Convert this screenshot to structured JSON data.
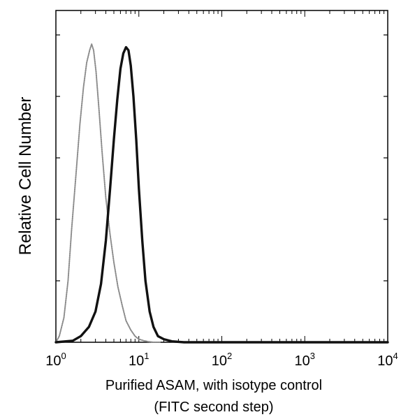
{
  "chart_data": {
    "type": "line",
    "title": "",
    "xlabel": [
      "Purified ASAM, with isotype control",
      "(FITC second step)"
    ],
    "ylabel": "Relative Cell Number",
    "x_scale": "log",
    "xlim": [
      1,
      10000
    ],
    "ylim": [
      0,
      100
    ],
    "x_ticks": [
      {
        "value": 1,
        "base": "10",
        "exp": "0"
      },
      {
        "value": 10,
        "base": "10",
        "exp": "1"
      },
      {
        "value": 100,
        "base": "10",
        "exp": "2"
      },
      {
        "value": 1000,
        "base": "10",
        "exp": "3"
      },
      {
        "value": 10000,
        "base": "10",
        "exp": "4"
      }
    ],
    "y_ticks": [
      0,
      20,
      40,
      60,
      80,
      100
    ],
    "grid": false,
    "legend": "none",
    "series": [
      {
        "style": "dotted-gray",
        "color": "#8a8a8a",
        "x": [
          1.0,
          1.1,
          1.25,
          1.4,
          1.55,
          1.75,
          1.95,
          2.15,
          2.35,
          2.55,
          2.7,
          2.85,
          3.05,
          3.3,
          3.6,
          4.0,
          4.5,
          5.0,
          5.6,
          6.3,
          7.0,
          8.0,
          9.0,
          10.0,
          11.5,
          13.0,
          15.0,
          18.0
        ],
        "y": [
          0,
          2,
          8,
          20,
          37,
          55,
          71,
          83,
          91,
          95,
          97,
          95,
          88,
          76,
          62,
          47,
          35,
          26,
          18,
          12,
          7,
          4,
          2,
          1,
          0.5,
          0.2,
          0,
          0
        ]
      },
      {
        "style": "solid-black",
        "color": "#111111",
        "x": [
          1.0,
          1.6,
          2.0,
          2.5,
          3.0,
          3.5,
          4.0,
          4.5,
          5.0,
          5.5,
          6.0,
          6.5,
          7.0,
          7.5,
          8.0,
          8.6,
          9.3,
          10.0,
          11.0,
          12.0,
          13.5,
          15.0,
          17.0,
          20.0,
          25.0,
          35.0,
          60.0,
          10000.0
        ],
        "y": [
          0,
          0.5,
          2,
          5,
          10,
          19,
          33,
          50,
          66,
          79,
          89,
          94,
          96,
          95,
          90,
          80,
          66,
          50,
          33,
          20,
          10,
          5,
          2,
          1,
          0.3,
          0,
          0,
          0
        ]
      }
    ]
  }
}
